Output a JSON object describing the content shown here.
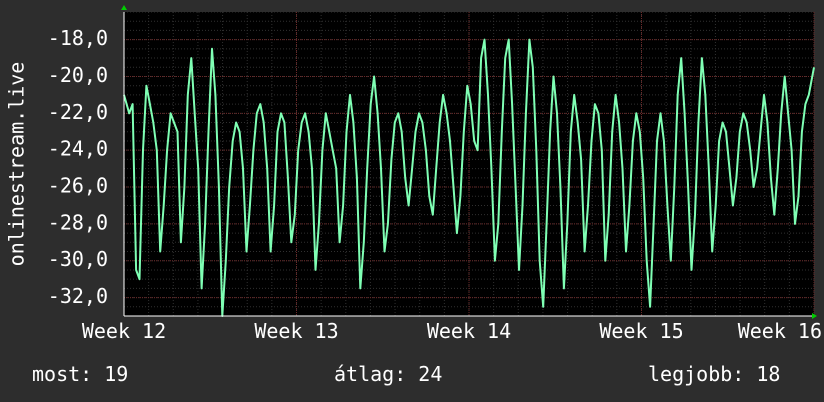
{
  "chart_data": {
    "type": "line",
    "ylabel": "onlinestream.live",
    "y_ticks": [
      "-18,0",
      "-20,0",
      "-22,0",
      "-24,0",
      "-26,0",
      "-28,0",
      "-30,0",
      "-32,0"
    ],
    "y_tick_values": [
      -18,
      -20,
      -22,
      -24,
      -26,
      -28,
      -30,
      -32
    ],
    "ylim": [
      -33.0,
      -16.5
    ],
    "x_ticks": [
      "Week  12",
      "Week  13",
      "Week  14",
      "Week  15",
      "Week  16"
    ],
    "x_tick_values": [
      12,
      13,
      14,
      15,
      16
    ],
    "xlim": [
      12,
      16
    ],
    "grid": true,
    "colors": {
      "line": "#7fffb4",
      "background": "#000000",
      "grid_major": "#6b2828",
      "grid_minor": "#303030",
      "axis_arrow": "#00cc00"
    },
    "series": [
      {
        "values": [
          [
            12.0,
            -21.0
          ],
          [
            12.03,
            -22.0
          ],
          [
            12.05,
            -21.5
          ],
          [
            12.07,
            -30.5
          ],
          [
            12.09,
            -31.0
          ],
          [
            12.11,
            -24.0
          ],
          [
            12.13,
            -20.5
          ],
          [
            12.15,
            -21.5
          ],
          [
            12.17,
            -22.5
          ],
          [
            12.19,
            -24.0
          ],
          [
            12.21,
            -29.5
          ],
          [
            12.23,
            -27.0
          ],
          [
            12.25,
            -24.0
          ],
          [
            12.27,
            -22.0
          ],
          [
            12.29,
            -22.5
          ],
          [
            12.31,
            -23.0
          ],
          [
            12.33,
            -29.0
          ],
          [
            12.35,
            -26.0
          ],
          [
            12.37,
            -21.0
          ],
          [
            12.39,
            -19.0
          ],
          [
            12.41,
            -22.0
          ],
          [
            12.43,
            -25.0
          ],
          [
            12.45,
            -31.5
          ],
          [
            12.47,
            -28.0
          ],
          [
            12.49,
            -23.0
          ],
          [
            12.51,
            -18.5
          ],
          [
            12.53,
            -21.0
          ],
          [
            12.55,
            -26.0
          ],
          [
            12.57,
            -33.0
          ],
          [
            12.59,
            -30.0
          ],
          [
            12.61,
            -26.0
          ],
          [
            12.63,
            -23.5
          ],
          [
            12.65,
            -22.5
          ],
          [
            12.67,
            -23.0
          ],
          [
            12.69,
            -25.0
          ],
          [
            12.71,
            -29.5
          ],
          [
            12.73,
            -27.0
          ],
          [
            12.75,
            -24.0
          ],
          [
            12.77,
            -22.0
          ],
          [
            12.79,
            -21.5
          ],
          [
            12.81,
            -22.5
          ],
          [
            12.83,
            -25.0
          ],
          [
            12.85,
            -29.5
          ],
          [
            12.87,
            -27.0
          ],
          [
            12.89,
            -23.0
          ],
          [
            12.91,
            -22.0
          ],
          [
            12.93,
            -22.5
          ],
          [
            12.95,
            -25.5
          ],
          [
            12.97,
            -29.0
          ],
          [
            12.99,
            -27.5
          ],
          [
            13.01,
            -24.0
          ],
          [
            13.03,
            -22.5
          ],
          [
            13.05,
            -22.0
          ],
          [
            13.07,
            -23.0
          ],
          [
            13.09,
            -25.0
          ],
          [
            13.11,
            -30.5
          ],
          [
            13.13,
            -28.0
          ],
          [
            13.15,
            -24.0
          ],
          [
            13.17,
            -22.0
          ],
          [
            13.19,
            -23.0
          ],
          [
            13.21,
            -24.0
          ],
          [
            13.23,
            -25.0
          ],
          [
            13.25,
            -29.0
          ],
          [
            13.27,
            -27.0
          ],
          [
            13.29,
            -23.0
          ],
          [
            13.31,
            -21.0
          ],
          [
            13.33,
            -22.5
          ],
          [
            13.35,
            -25.5
          ],
          [
            13.37,
            -31.5
          ],
          [
            13.39,
            -29.0
          ],
          [
            13.41,
            -25.0
          ],
          [
            13.43,
            -21.5
          ],
          [
            13.45,
            -20.0
          ],
          [
            13.47,
            -22.0
          ],
          [
            13.49,
            -25.0
          ],
          [
            13.51,
            -29.5
          ],
          [
            13.53,
            -28.0
          ],
          [
            13.55,
            -24.5
          ],
          [
            13.57,
            -22.5
          ],
          [
            13.59,
            -22.0
          ],
          [
            13.61,
            -23.0
          ],
          [
            13.63,
            -25.5
          ],
          [
            13.65,
            -27.0
          ],
          [
            13.67,
            -25.0
          ],
          [
            13.69,
            -23.0
          ],
          [
            13.71,
            -22.0
          ],
          [
            13.73,
            -22.5
          ],
          [
            13.75,
            -24.0
          ],
          [
            13.77,
            -26.5
          ],
          [
            13.79,
            -27.5
          ],
          [
            13.81,
            -25.0
          ],
          [
            13.83,
            -22.5
          ],
          [
            13.85,
            -21.0
          ],
          [
            13.87,
            -22.0
          ],
          [
            13.89,
            -23.5
          ],
          [
            13.91,
            -26.0
          ],
          [
            13.93,
            -28.5
          ],
          [
            13.95,
            -26.5
          ],
          [
            13.97,
            -23.0
          ],
          [
            13.99,
            -20.5
          ],
          [
            14.01,
            -21.5
          ],
          [
            14.03,
            -23.5
          ],
          [
            14.05,
            -24.0
          ],
          [
            14.07,
            -19.0
          ],
          [
            14.09,
            -18.0
          ],
          [
            14.11,
            -21.0
          ],
          [
            14.13,
            -25.0
          ],
          [
            14.15,
            -30.0
          ],
          [
            14.17,
            -28.0
          ],
          [
            14.19,
            -23.0
          ],
          [
            14.21,
            -19.0
          ],
          [
            14.23,
            -18.0
          ],
          [
            14.25,
            -21.5
          ],
          [
            14.27,
            -26.0
          ],
          [
            14.29,
            -30.5
          ],
          [
            14.31,
            -27.0
          ],
          [
            14.33,
            -22.0
          ],
          [
            14.35,
            -18.0
          ],
          [
            14.37,
            -19.5
          ],
          [
            14.39,
            -24.0
          ],
          [
            14.41,
            -30.0
          ],
          [
            14.43,
            -32.5
          ],
          [
            14.45,
            -28.0
          ],
          [
            14.47,
            -23.0
          ],
          [
            14.49,
            -20.0
          ],
          [
            14.51,
            -22.0
          ],
          [
            14.53,
            -26.0
          ],
          [
            14.55,
            -31.5
          ],
          [
            14.57,
            -28.0
          ],
          [
            14.59,
            -23.0
          ],
          [
            14.61,
            -21.0
          ],
          [
            14.63,
            -22.5
          ],
          [
            14.65,
            -24.5
          ],
          [
            14.67,
            -29.5
          ],
          [
            14.69,
            -27.0
          ],
          [
            14.71,
            -23.5
          ],
          [
            14.73,
            -21.5
          ],
          [
            14.75,
            -22.0
          ],
          [
            14.77,
            -24.0
          ],
          [
            14.79,
            -30.0
          ],
          [
            14.81,
            -27.5
          ],
          [
            14.83,
            -23.0
          ],
          [
            14.85,
            -21.0
          ],
          [
            14.87,
            -22.5
          ],
          [
            14.89,
            -25.0
          ],
          [
            14.91,
            -29.5
          ],
          [
            14.93,
            -27.0
          ],
          [
            14.95,
            -23.5
          ],
          [
            14.97,
            -22.0
          ],
          [
            14.99,
            -23.0
          ],
          [
            15.01,
            -25.5
          ],
          [
            15.03,
            -30.0
          ],
          [
            15.05,
            -32.5
          ],
          [
            15.07,
            -28.0
          ],
          [
            15.09,
            -23.5
          ],
          [
            15.11,
            -22.0
          ],
          [
            15.13,
            -23.5
          ],
          [
            15.15,
            -27.0
          ],
          [
            15.17,
            -30.0
          ],
          [
            15.19,
            -26.0
          ],
          [
            15.21,
            -21.0
          ],
          [
            15.23,
            -19.0
          ],
          [
            15.25,
            -22.0
          ],
          [
            15.27,
            -26.0
          ],
          [
            15.29,
            -30.5
          ],
          [
            15.31,
            -27.5
          ],
          [
            15.33,
            -22.5
          ],
          [
            15.35,
            -19.0
          ],
          [
            15.37,
            -21.0
          ],
          [
            15.39,
            -25.0
          ],
          [
            15.41,
            -29.5
          ],
          [
            15.43,
            -27.0
          ],
          [
            15.45,
            -23.5
          ],
          [
            15.47,
            -22.5
          ],
          [
            15.49,
            -23.0
          ],
          [
            15.51,
            -25.0
          ],
          [
            15.53,
            -27.0
          ],
          [
            15.55,
            -25.5
          ],
          [
            15.57,
            -23.0
          ],
          [
            15.59,
            -22.0
          ],
          [
            15.61,
            -22.5
          ],
          [
            15.63,
            -24.0
          ],
          [
            15.65,
            -26.0
          ],
          [
            15.67,
            -25.0
          ],
          [
            15.69,
            -23.0
          ],
          [
            15.71,
            -21.0
          ],
          [
            15.73,
            -22.5
          ],
          [
            15.75,
            -25.5
          ],
          [
            15.77,
            -27.5
          ],
          [
            15.79,
            -25.0
          ],
          [
            15.81,
            -22.0
          ],
          [
            15.83,
            -20.0
          ],
          [
            15.85,
            -22.0
          ],
          [
            15.87,
            -24.0
          ],
          [
            15.89,
            -28.0
          ],
          [
            15.91,
            -26.5
          ],
          [
            15.93,
            -23.0
          ],
          [
            15.95,
            -21.5
          ],
          [
            15.97,
            -21.0
          ],
          [
            16.0,
            -19.5
          ]
        ]
      }
    ]
  },
  "stats": {
    "current": "most: 19",
    "average": "átlag: 24",
    "best": "legjobb: 18"
  }
}
